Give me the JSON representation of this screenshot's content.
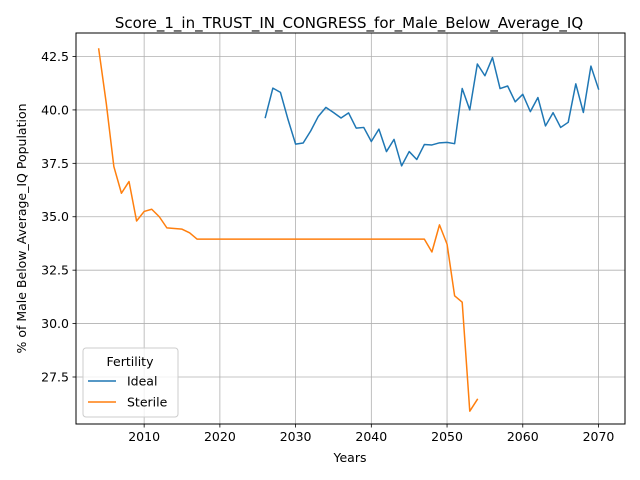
{
  "chart_data": {
    "type": "line",
    "title": "Score_1_in_TRUST_IN_CONGRESS_for_Male_Below_Average_IQ",
    "xlabel": "Years",
    "ylabel": "% of Male Below_Average_IQ Population",
    "xlim": [
      2001,
      2073.5
    ],
    "ylim": [
      25.3,
      43.6
    ],
    "xticks": [
      2010,
      2020,
      2030,
      2040,
      2050,
      2060,
      2070
    ],
    "yticks": [
      27.5,
      30.0,
      32.5,
      35.0,
      37.5,
      40.0,
      42.5
    ],
    "ytick_labels": [
      "27.5",
      "30.0",
      "32.5",
      "35.0",
      "37.5",
      "40.0",
      "42.5"
    ],
    "grid": true,
    "legend": {
      "title": "Fertility",
      "position": "lower-left"
    },
    "series": [
      {
        "name": "Ideal",
        "color": "#1f77b4",
        "x": [
          2026,
          2027,
          2028,
          2029,
          2030,
          2031,
          2032,
          2033,
          2034,
          2035,
          2036,
          2037,
          2038,
          2039,
          2040,
          2041,
          2042,
          2043,
          2044,
          2045,
          2046,
          2047,
          2048,
          2049,
          2050,
          2051,
          2052,
          2053,
          2054,
          2055,
          2056,
          2057,
          2058,
          2059,
          2060,
          2061,
          2062,
          2063,
          2064,
          2065,
          2066,
          2067,
          2068,
          2069,
          2070
        ],
        "y": [
          39.65,
          41.02,
          40.82,
          39.55,
          38.4,
          38.45,
          39.02,
          39.7,
          40.12,
          39.88,
          39.62,
          39.86,
          39.15,
          39.18,
          38.52,
          39.1,
          38.05,
          38.62,
          37.38,
          38.05,
          37.68,
          38.38,
          38.36,
          38.46,
          38.48,
          38.42,
          41.0,
          40.0,
          42.15,
          41.6,
          42.45,
          41.0,
          41.12,
          40.38,
          40.73,
          39.92,
          40.58,
          39.25,
          39.87,
          39.18,
          39.42,
          41.22,
          39.88,
          42.05,
          40.98
        ]
      },
      {
        "name": "Sterile",
        "color": "#ff7f0e",
        "x": [
          2004,
          2005,
          2006,
          2007,
          2008,
          2009,
          2010,
          2011,
          2012,
          2013,
          2014,
          2015,
          2016,
          2017,
          2018,
          2019,
          2020,
          2021,
          2022,
          2023,
          2024,
          2025,
          2026,
          2027,
          2028,
          2029,
          2030,
          2031,
          2032,
          2033,
          2034,
          2035,
          2036,
          2037,
          2038,
          2039,
          2040,
          2041,
          2042,
          2043,
          2044,
          2045,
          2046,
          2047,
          2048,
          2049,
          2050,
          2051,
          2052,
          2053,
          2054
        ],
        "y": [
          42.85,
          40.3,
          37.35,
          36.1,
          36.65,
          34.8,
          35.25,
          35.35,
          35.0,
          34.48,
          34.45,
          34.42,
          34.25,
          33.95,
          33.95,
          33.95,
          33.95,
          33.95,
          33.95,
          33.95,
          33.95,
          33.95,
          33.95,
          33.95,
          33.95,
          33.95,
          33.95,
          33.95,
          33.95,
          33.95,
          33.95,
          33.95,
          33.95,
          33.95,
          33.95,
          33.95,
          33.95,
          33.95,
          33.95,
          33.95,
          33.95,
          33.95,
          33.95,
          33.95,
          33.35,
          34.62,
          33.72,
          31.3,
          31.0,
          25.9,
          26.45
        ]
      }
    ]
  }
}
